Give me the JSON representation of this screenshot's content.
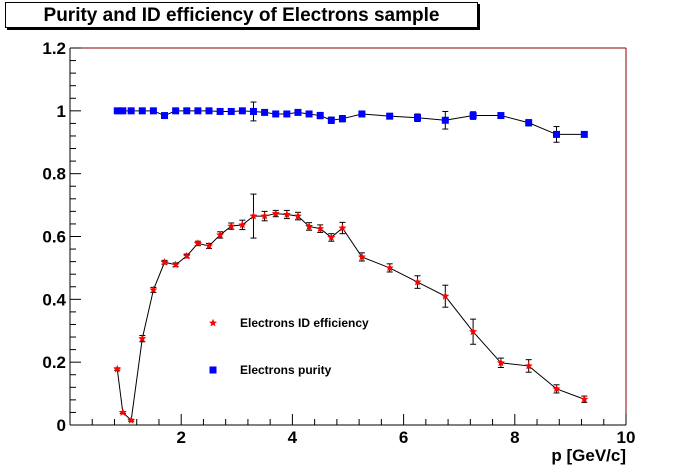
{
  "chart_data": {
    "type": "scatter",
    "title": "Purity and ID efficiency of Electrons sample",
    "xlabel": "p [GeV/c]",
    "ylabel": "",
    "xlim": [
      0,
      10
    ],
    "ylim": [
      0,
      1.2
    ],
    "x_ticks": [
      "2",
      "4",
      "6",
      "8",
      "10"
    ],
    "y_ticks": [
      "0",
      "0.2",
      "0.4",
      "0.6",
      "0.8",
      "1",
      "1.2"
    ],
    "grid": false,
    "legend_position": "lower-left inside",
    "series": [
      {
        "name": "Electrons ID efficiency",
        "marker": "star",
        "color": "#ff0000",
        "line": true,
        "x": [
          0.85,
          0.95,
          1.1,
          1.3,
          1.5,
          1.7,
          1.9,
          2.1,
          2.3,
          2.5,
          2.7,
          2.9,
          3.1,
          3.3,
          3.5,
          3.7,
          3.9,
          4.1,
          4.3,
          4.5,
          4.7,
          4.9,
          5.25,
          5.75,
          6.25,
          6.75,
          7.25,
          7.75,
          8.25,
          8.75,
          9.25
        ],
        "y": [
          0.178,
          0.04,
          0.015,
          0.275,
          0.43,
          0.518,
          0.51,
          0.538,
          0.578,
          0.57,
          0.605,
          0.633,
          0.637,
          0.665,
          0.665,
          0.673,
          0.67,
          0.665,
          0.632,
          0.625,
          0.597,
          0.627,
          0.535,
          0.5,
          0.455,
          0.41,
          0.297,
          0.198,
          0.188,
          0.115,
          0.082
        ],
        "err": [
          0.004,
          0.003,
          0.003,
          0.01,
          0.008,
          0.006,
          0.006,
          0.006,
          0.007,
          0.008,
          0.01,
          0.01,
          0.015,
          0.07,
          0.015,
          0.01,
          0.013,
          0.012,
          0.012,
          0.012,
          0.012,
          0.018,
          0.013,
          0.013,
          0.02,
          0.035,
          0.04,
          0.015,
          0.02,
          0.013,
          0.01
        ]
      },
      {
        "name": "Electrons purity",
        "marker": "square",
        "color": "#0000ff",
        "line": true,
        "x": [
          0.85,
          0.95,
          1.1,
          1.3,
          1.5,
          1.7,
          1.9,
          2.1,
          2.3,
          2.5,
          2.7,
          2.9,
          3.1,
          3.3,
          3.5,
          3.7,
          3.9,
          4.1,
          4.3,
          4.5,
          4.7,
          4.9,
          5.25,
          5.75,
          6.25,
          6.75,
          7.25,
          7.75,
          8.25,
          8.75,
          9.25
        ],
        "y": [
          1.0,
          1.0,
          1.0,
          1.0,
          1.0,
          0.985,
          1.0,
          1.0,
          1.0,
          1.0,
          0.998,
          0.998,
          1.0,
          0.998,
          0.995,
          0.99,
          0.99,
          0.995,
          0.99,
          0.985,
          0.97,
          0.975,
          0.99,
          0.983,
          0.978,
          0.97,
          0.985,
          0.985,
          0.962,
          0.925,
          0.925
        ],
        "err": [
          0.003,
          0.003,
          0.003,
          0.003,
          0.004,
          0.005,
          0.004,
          0.004,
          0.004,
          0.004,
          0.004,
          0.005,
          0.008,
          0.03,
          0.008,
          0.008,
          0.008,
          0.008,
          0.008,
          0.01,
          0.01,
          0.01,
          0.008,
          0.008,
          0.012,
          0.028,
          0.012,
          0.008,
          0.01,
          0.025,
          0.008
        ]
      }
    ]
  }
}
